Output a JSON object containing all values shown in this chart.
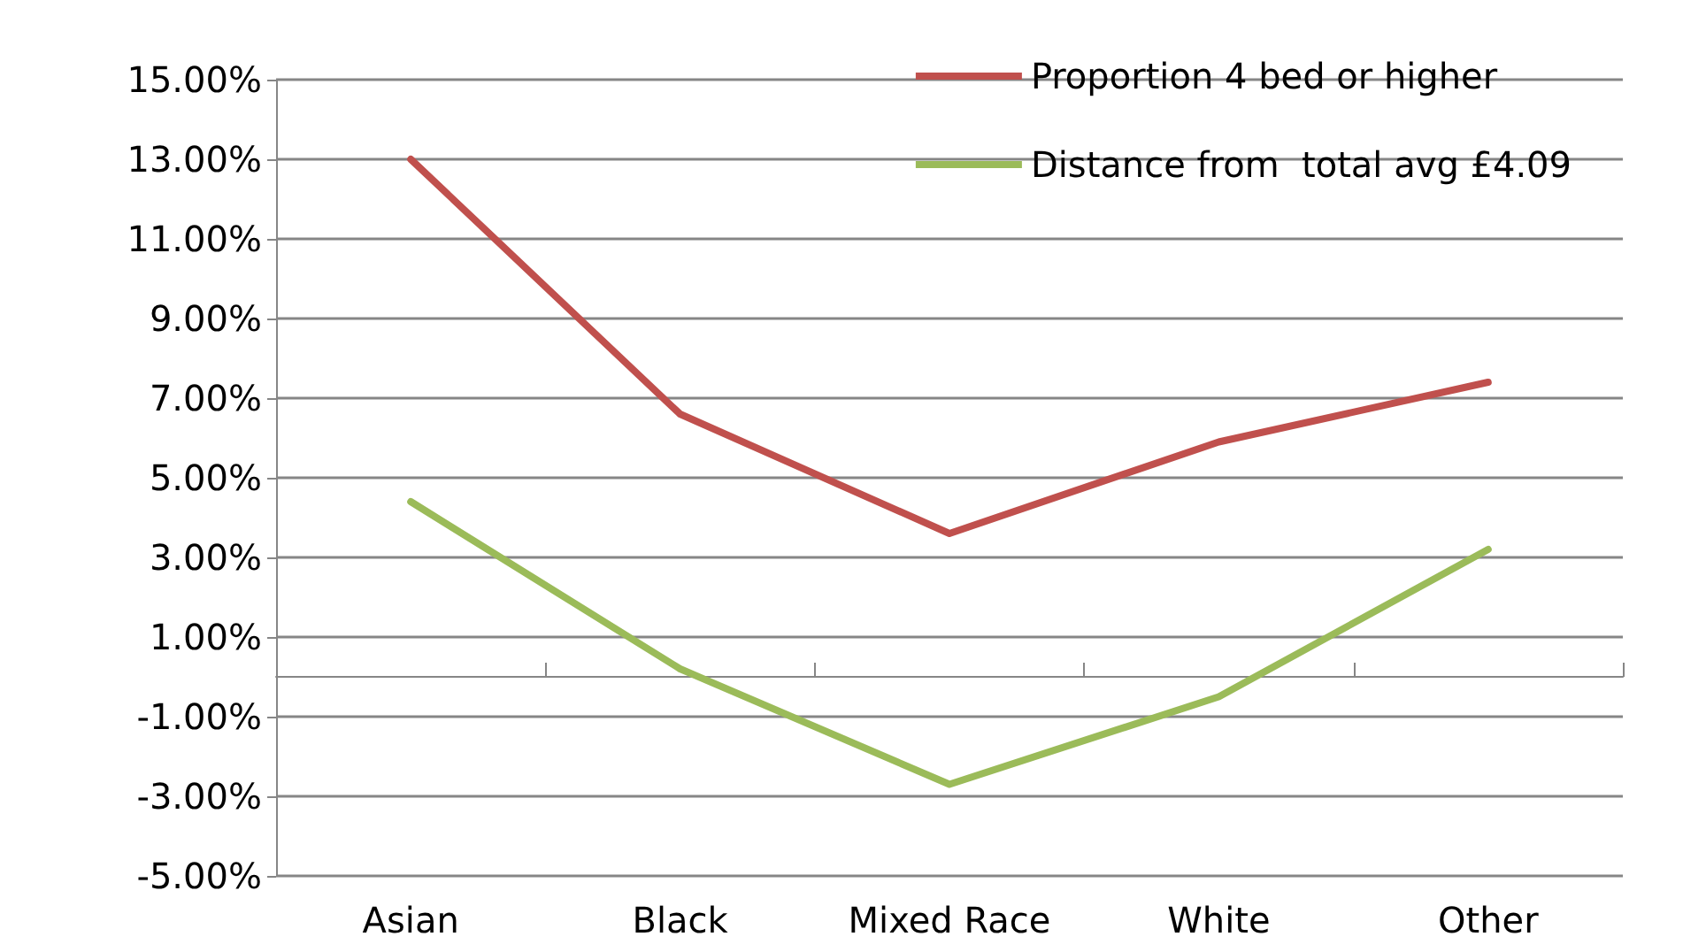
{
  "chart_data": {
    "type": "line",
    "categories": [
      "Asian",
      "Black",
      "Mixed Race",
      "White",
      "Other"
    ],
    "series": [
      {
        "name": "Proportion 4 bed or higher",
        "color": "#c0504d",
        "values": [
          13.0,
          6.6,
          3.6,
          5.9,
          7.4
        ]
      },
      {
        "name": "Distance from  total avg £4.09",
        "color": "#9bbb59",
        "values": [
          4.4,
          0.2,
          -2.7,
          -0.5,
          3.2
        ]
      }
    ],
    "ylim": [
      -5,
      15
    ],
    "yticks": [
      {
        "value": -5,
        "label": "-5.00%"
      },
      {
        "value": -3,
        "label": "-3.00%"
      },
      {
        "value": -1,
        "label": "-1.00%"
      },
      {
        "value": 1,
        "label": "1.00%"
      },
      {
        "value": 3,
        "label": "3.00%"
      },
      {
        "value": 5,
        "label": "5.00%"
      },
      {
        "value": 7,
        "label": "7.00%"
      },
      {
        "value": 9,
        "label": "9.00%"
      },
      {
        "value": 11,
        "label": "11.00%"
      },
      {
        "value": 13,
        "label": "13.00%"
      },
      {
        "value": 15,
        "label": "15.00%"
      }
    ],
    "grid": "y",
    "legend": "top right",
    "marker": "none",
    "line_style": "solid"
  }
}
